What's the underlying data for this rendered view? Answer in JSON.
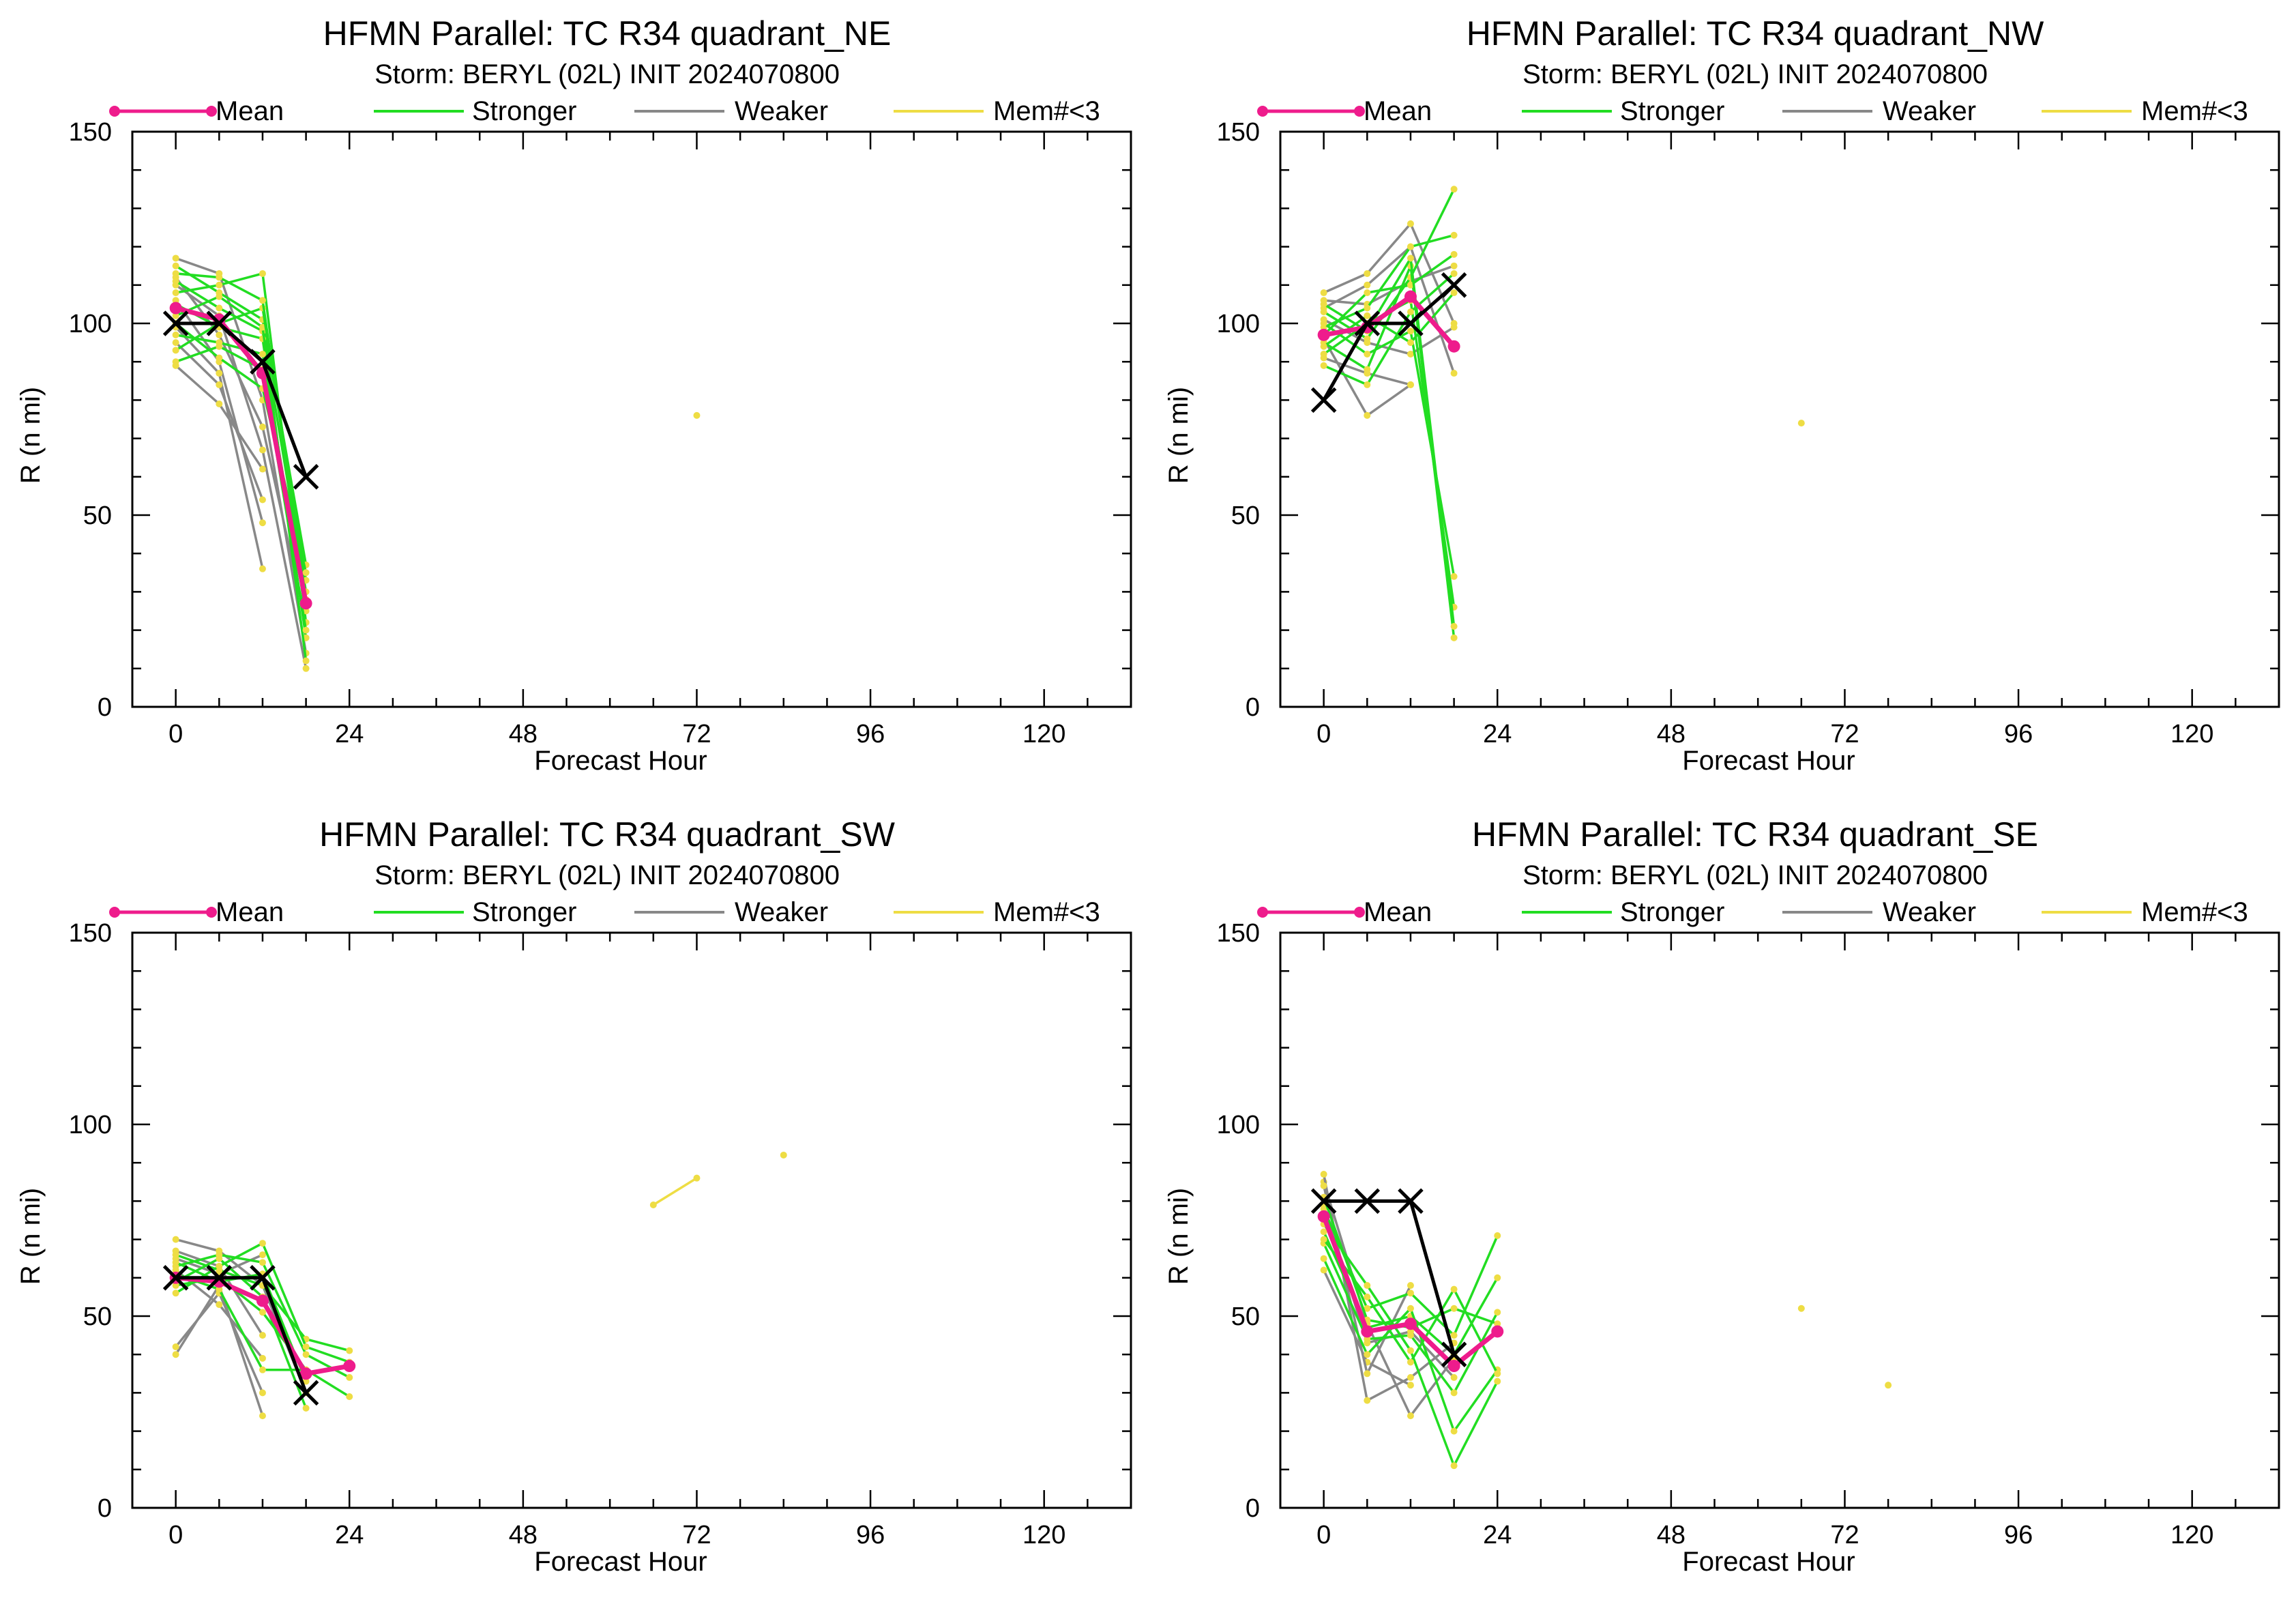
{
  "legend": {
    "mean_label": "Mean",
    "stronger_label": "Stronger",
    "weaker_label": "Weaker",
    "few_label": "Mem#<3"
  },
  "colors": {
    "mean": "#ee1c8c",
    "stronger": "#22dd22",
    "weaker": "#888888",
    "few": "#eedd44",
    "best_track": "#000000"
  },
  "chart_data": [
    {
      "type": "line",
      "title": "HFMN Parallel: TC  R34 quadrant_NE",
      "subtitle": "Storm: BERYL (02L) INIT 2024070800",
      "xlabel": "Forecast Hour",
      "ylabel": "R (n mi)",
      "xlim": [
        -6,
        132
      ],
      "ylim": [
        0,
        150
      ],
      "xticks": [
        0,
        24,
        48,
        72,
        96,
        120
      ],
      "yticks": [
        0,
        50,
        100,
        150
      ],
      "grid": false,
      "legend_position": "top",
      "series": [
        {
          "kind": "mean",
          "x": [
            0,
            6,
            12,
            18
          ],
          "y": [
            104,
            101,
            87,
            27
          ]
        },
        {
          "kind": "best_track",
          "x": [
            0,
            6,
            12,
            18
          ],
          "y": [
            100,
            100,
            90,
            60
          ]
        },
        {
          "kind": "stronger",
          "x": [
            0,
            6,
            12,
            18
          ],
          "y": [
            115,
            108,
            101,
            37
          ]
        },
        {
          "kind": "stronger",
          "x": [
            0,
            6,
            12,
            18
          ],
          "y": [
            111,
            104,
            98,
            30
          ]
        },
        {
          "kind": "stronger",
          "x": [
            0,
            6,
            12,
            18
          ],
          "y": [
            108,
            110,
            113,
            22
          ]
        },
        {
          "kind": "stronger",
          "x": [
            0,
            6,
            12,
            18
          ],
          "y": [
            105,
            99,
            96,
            18
          ]
        },
        {
          "kind": "stronger",
          "x": [
            0,
            6,
            12,
            18
          ],
          "y": [
            102,
            107,
            99,
            12
          ]
        },
        {
          "kind": "stronger",
          "x": [
            0,
            6,
            12,
            18
          ],
          "y": [
            97,
            95,
            92,
            25
          ]
        },
        {
          "kind": "stronger",
          "x": [
            0,
            6,
            12,
            18
          ],
          "y": [
            93,
            100,
            104,
            33
          ]
        },
        {
          "kind": "stronger",
          "x": [
            0,
            6,
            12,
            18
          ],
          "y": [
            90,
            94,
            88,
            20
          ]
        },
        {
          "kind": "stronger",
          "x": [
            0,
            6,
            12,
            18
          ],
          "y": [
            113,
            112,
            106,
            28
          ]
        },
        {
          "kind": "stronger",
          "x": [
            0,
            6,
            12,
            18
          ],
          "y": [
            100,
            91,
            83,
            35
          ]
        },
        {
          "kind": "weaker",
          "x": [
            0,
            6,
            12,
            18
          ],
          "y": [
            117,
            113,
            80,
            14
          ]
        },
        {
          "kind": "weaker",
          "x": [
            0,
            6,
            12,
            18
          ],
          "y": [
            110,
            102,
            67,
            10
          ]
        },
        {
          "kind": "weaker",
          "x": [
            0,
            6,
            12
          ],
          "y": [
            106,
            90,
            48
          ]
        },
        {
          "kind": "weaker",
          "x": [
            0,
            6,
            12
          ],
          "y": [
            99,
            87,
            36
          ]
        },
        {
          "kind": "weaker",
          "x": [
            0,
            6,
            12
          ],
          "y": [
            95,
            84,
            54
          ]
        },
        {
          "kind": "weaker",
          "x": [
            0,
            6,
            12
          ],
          "y": [
            89,
            79,
            62
          ]
        },
        {
          "kind": "weaker",
          "x": [
            0,
            6,
            12,
            18
          ],
          "y": [
            112,
            97,
            73,
            22
          ]
        },
        {
          "kind": "few",
          "x": [
            72
          ],
          "y": [
            76
          ]
        }
      ]
    },
    {
      "type": "line",
      "title": "HFMN Parallel: TC  R34 quadrant_NW",
      "subtitle": "Storm: BERYL (02L) INIT 2024070800",
      "xlabel": "Forecast Hour",
      "ylabel": "R (n mi)",
      "xlim": [
        -6,
        132
      ],
      "ylim": [
        0,
        150
      ],
      "xticks": [
        0,
        24,
        48,
        72,
        96,
        120
      ],
      "yticks": [
        0,
        50,
        100,
        150
      ],
      "grid": false,
      "legend_position": "top",
      "series": [
        {
          "kind": "mean",
          "x": [
            0,
            6,
            12,
            18
          ],
          "y": [
            97,
            99,
            107,
            94
          ]
        },
        {
          "kind": "best_track",
          "x": [
            0,
            6,
            12,
            18
          ],
          "y": [
            80,
            100,
            100,
            110
          ]
        },
        {
          "kind": "stronger",
          "x": [
            0,
            6,
            12,
            18
          ],
          "y": [
            103,
            96,
            112,
            135
          ]
        },
        {
          "kind": "stronger",
          "x": [
            0,
            6,
            12,
            18
          ],
          "y": [
            99,
            104,
            120,
            123
          ]
        },
        {
          "kind": "stronger",
          "x": [
            0,
            6,
            12,
            18
          ],
          "y": [
            95,
            88,
            115,
            18
          ]
        },
        {
          "kind": "stronger",
          "x": [
            0,
            6,
            12,
            18
          ],
          "y": [
            92,
            100,
            106,
            26
          ]
        },
        {
          "kind": "stronger",
          "x": [
            0,
            6,
            12,
            18
          ],
          "y": [
            100,
            92,
            98,
            34
          ]
        },
        {
          "kind": "stronger",
          "x": [
            0,
            6,
            12,
            18
          ],
          "y": [
            97,
            108,
            110,
            118
          ]
        },
        {
          "kind": "stronger",
          "x": [
            0,
            6,
            12,
            18
          ],
          "y": [
            89,
            84,
            103,
            113
          ]
        },
        {
          "kind": "stronger",
          "x": [
            0,
            6,
            12,
            18
          ],
          "y": [
            105,
            98,
            117,
            21
          ]
        },
        {
          "kind": "stronger",
          "x": [
            0,
            6,
            12,
            18
          ],
          "y": [
            94,
            102,
            95,
            108
          ]
        },
        {
          "kind": "weaker",
          "x": [
            0,
            6,
            12,
            18
          ],
          "y": [
            108,
            113,
            126,
            100
          ]
        },
        {
          "kind": "weaker",
          "x": [
            0,
            6,
            12,
            18
          ],
          "y": [
            104,
            110,
            120,
            87
          ]
        },
        {
          "kind": "weaker",
          "x": [
            0,
            6,
            12,
            18
          ],
          "y": [
            101,
            95,
            92,
            99
          ]
        },
        {
          "kind": "weaker",
          "x": [
            0,
            6,
            12
          ],
          "y": [
            96,
            76,
            84
          ]
        },
        {
          "kind": "weaker",
          "x": [
            0,
            6,
            12
          ],
          "y": [
            91,
            87,
            84
          ]
        },
        {
          "kind": "weaker",
          "x": [
            0,
            6,
            12,
            18
          ],
          "y": [
            106,
            105,
            111,
            115
          ]
        },
        {
          "kind": "few",
          "x": [
            66
          ],
          "y": [
            74
          ]
        }
      ]
    },
    {
      "type": "line",
      "title": "HFMN Parallel: TC  R34 quadrant_SW",
      "subtitle": "Storm: BERYL (02L) INIT 2024070800",
      "xlabel": "Forecast Hour",
      "ylabel": "R (n mi)",
      "xlim": [
        -6,
        132
      ],
      "ylim": [
        0,
        150
      ],
      "xticks": [
        0,
        24,
        48,
        72,
        96,
        120
      ],
      "yticks": [
        0,
        50,
        100,
        150
      ],
      "grid": false,
      "legend_position": "top",
      "series": [
        {
          "kind": "mean",
          "x": [
            0,
            6,
            12,
            18,
            24
          ],
          "y": [
            60,
            59,
            54,
            35,
            37
          ]
        },
        {
          "kind": "best_track",
          "x": [
            0,
            6,
            12,
            18
          ],
          "y": [
            60,
            60,
            60,
            30
          ]
        },
        {
          "kind": "stronger",
          "x": [
            0,
            6,
            12,
            18,
            24
          ],
          "y": [
            66,
            62,
            58,
            44,
            41
          ]
        },
        {
          "kind": "stronger",
          "x": [
            0,
            6,
            12,
            18,
            24
          ],
          "y": [
            63,
            66,
            64,
            40,
            34
          ]
        },
        {
          "kind": "stronger",
          "x": [
            0,
            6,
            12,
            18,
            24
          ],
          "y": [
            58,
            60,
            51,
            36,
            29
          ]
        },
        {
          "kind": "stronger",
          "x": [
            0,
            6,
            12,
            18
          ],
          "y": [
            61,
            57,
            36,
            36
          ]
        },
        {
          "kind": "stronger",
          "x": [
            0,
            6,
            12,
            18,
            24
          ],
          "y": [
            56,
            63,
            69,
            42,
            38
          ]
        },
        {
          "kind": "stronger",
          "x": [
            0,
            6,
            12,
            18
          ],
          "y": [
            64,
            59,
            61,
            33
          ]
        },
        {
          "kind": "stronger",
          "x": [
            0,
            6,
            12,
            18
          ],
          "y": [
            59,
            65,
            55,
            26
          ]
        },
        {
          "kind": "weaker",
          "x": [
            0,
            6,
            12
          ],
          "y": [
            40,
            58,
            24
          ]
        },
        {
          "kind": "weaker",
          "x": [
            0,
            6,
            12
          ],
          "y": [
            42,
            56,
            30
          ]
        },
        {
          "kind": "weaker",
          "x": [
            0,
            6,
            12
          ],
          "y": [
            62,
            53,
            39
          ]
        },
        {
          "kind": "weaker",
          "x": [
            0,
            6,
            12
          ],
          "y": [
            67,
            63,
            45
          ]
        },
        {
          "kind": "weaker",
          "x": [
            0,
            6,
            12,
            18
          ],
          "y": [
            70,
            67,
            58,
            30
          ]
        },
        {
          "kind": "weaker",
          "x": [
            0,
            6,
            12
          ],
          "y": [
            65,
            61,
            66
          ]
        },
        {
          "kind": "few",
          "x": [
            66,
            72
          ],
          "y": [
            79,
            86
          ]
        },
        {
          "kind": "few",
          "x": [
            84
          ],
          "y": [
            92
          ]
        }
      ]
    },
    {
      "type": "line",
      "title": "HFMN Parallel: TC  R34 quadrant_SE",
      "subtitle": "Storm: BERYL (02L) INIT 2024070800",
      "xlabel": "Forecast Hour",
      "ylabel": "R (n mi)",
      "xlim": [
        -6,
        132
      ],
      "ylim": [
        0,
        150
      ],
      "xticks": [
        0,
        24,
        48,
        72,
        96,
        120
      ],
      "yticks": [
        0,
        50,
        100,
        150
      ],
      "grid": false,
      "legend_position": "top",
      "series": [
        {
          "kind": "mean",
          "x": [
            0,
            6,
            12,
            18,
            24
          ],
          "y": [
            76,
            46,
            48,
            37,
            46
          ]
        },
        {
          "kind": "best_track",
          "x": [
            0,
            6,
            12,
            18
          ],
          "y": [
            80,
            80,
            80,
            40
          ]
        },
        {
          "kind": "stronger",
          "x": [
            0,
            6,
            12,
            18,
            24
          ],
          "y": [
            78,
            52,
            56,
            45,
            71
          ]
        },
        {
          "kind": "stronger",
          "x": [
            0,
            6,
            12,
            18,
            24
          ],
          "y": [
            72,
            47,
            50,
            40,
            60
          ]
        },
        {
          "kind": "stronger",
          "x": [
            0,
            6,
            12,
            18,
            24
          ],
          "y": [
            69,
            44,
            45,
            30,
            51
          ]
        },
        {
          "kind": "stronger",
          "x": [
            0,
            6,
            12,
            18,
            24
          ],
          "y": [
            74,
            58,
            41,
            11,
            33
          ]
        },
        {
          "kind": "stronger",
          "x": [
            0,
            6,
            12,
            18,
            24
          ],
          "y": [
            65,
            40,
            52,
            20,
            36
          ]
        },
        {
          "kind": "stronger",
          "x": [
            0,
            6,
            12,
            18,
            24
          ],
          "y": [
            81,
            49,
            47,
            52,
            48
          ]
        },
        {
          "kind": "stronger",
          "x": [
            0,
            6,
            12,
            18,
            24
          ],
          "y": [
            70,
            55,
            38,
            57,
            35
          ]
        },
        {
          "kind": "weaker",
          "x": [
            0,
            6,
            12,
            18
          ],
          "y": [
            85,
            48,
            24,
            39
          ]
        },
        {
          "kind": "weaker",
          "x": [
            0,
            6,
            12,
            18
          ],
          "y": [
            87,
            28,
            34,
            43
          ]
        },
        {
          "kind": "weaker",
          "x": [
            0,
            6,
            12
          ],
          "y": [
            62,
            38,
            32
          ]
        },
        {
          "kind": "weaker",
          "x": [
            0,
            6,
            12
          ],
          "y": [
            84,
            35,
            58
          ]
        },
        {
          "kind": "weaker",
          "x": [
            0,
            6,
            12,
            18
          ],
          "y": [
            79,
            43,
            46,
            34
          ]
        },
        {
          "kind": "few",
          "x": [
            66
          ],
          "y": [
            52
          ]
        },
        {
          "kind": "few",
          "x": [
            78
          ],
          "y": [
            32
          ]
        }
      ]
    }
  ]
}
